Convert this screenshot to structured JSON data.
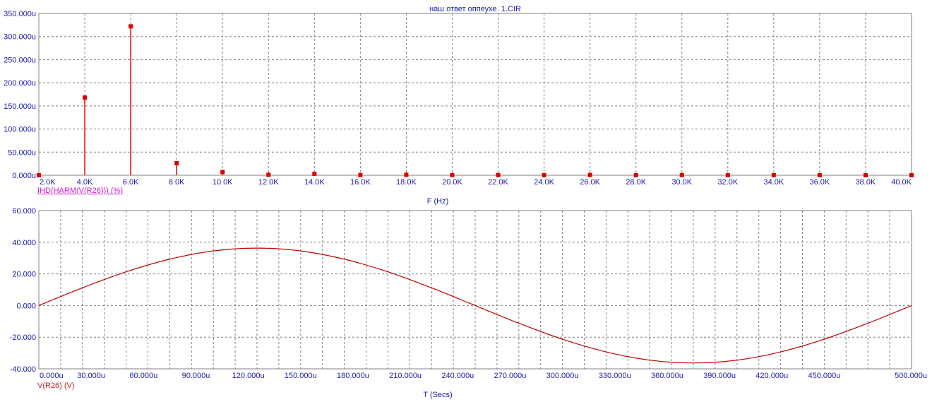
{
  "chart_data": [
    {
      "type": "bar",
      "title": "наш ответ оппеухе. 1.CIR",
      "xlabel": "F (Hz)",
      "ylabel": "IHD(HARM(V(R26))) (%)",
      "x_tick_labels": [
        "2.0K",
        "4.0K",
        "6.0K",
        "8.0K",
        "10.0K",
        "12.0K",
        "14.0K",
        "16.0K",
        "18.0K",
        "20.0K",
        "22.0K",
        "24.0K",
        "26.0K",
        "28.0K",
        "30.0K",
        "32.0K",
        "34.0K",
        "36.0K",
        "38.0K",
        "40.0K"
      ],
      "y_tick_labels": [
        "0.000u",
        "50.000u",
        "100.000u",
        "150.000u",
        "200.000u",
        "250.000u",
        "300.000u",
        "350.000u"
      ],
      "xlim": [
        2000,
        40000
      ],
      "ylim": [
        0,
        350
      ],
      "y_unit": "u",
      "x": [
        2000,
        4000,
        6000,
        8000,
        10000,
        12000,
        14000,
        16000,
        18000,
        20000,
        22000,
        24000,
        26000,
        28000,
        30000,
        32000,
        34000,
        36000,
        38000,
        40000
      ],
      "values": [
        0,
        168,
        322,
        26,
        7,
        1,
        3,
        0.5,
        1,
        0.3,
        0.5,
        0.2,
        0.6,
        0.1,
        0.5,
        0.1,
        0.1,
        0.1,
        0.1,
        0
      ],
      "grid": true,
      "color": "#dd0000"
    },
    {
      "type": "line",
      "xlabel": "T (Secs)",
      "ylabel": "V(R26) (V)",
      "x_tick_labels": [
        "0.000u",
        "30.000u",
        "60.000u",
        "90.000u",
        "120.000u",
        "150.000u",
        "180.000u",
        "210.000u",
        "240.000u",
        "270.000u",
        "300.000u",
        "330.000u",
        "360.000u",
        "390.000u",
        "420.000u",
        "450.000u",
        "500.000u"
      ],
      "y_tick_labels": [
        "-40.000",
        "-20.000",
        "0.000",
        "20.000",
        "40.000",
        "60.000"
      ],
      "xlim": [
        0,
        500
      ],
      "ylim": [
        -40,
        60
      ],
      "x": [
        0,
        25,
        50,
        75,
        100,
        125,
        150,
        175,
        200,
        225,
        250,
        275,
        300,
        325,
        350,
        375,
        400,
        425,
        450,
        475,
        500
      ],
      "values": [
        0,
        11.2,
        21.3,
        29.3,
        34.5,
        36.3,
        34.5,
        29.3,
        21.3,
        11.2,
        0,
        -11.2,
        -21.3,
        -29.3,
        -34.5,
        -36.3,
        -34.5,
        -29.3,
        -21.3,
        -11.2,
        0
      ],
      "grid": true,
      "color": "#bb0000"
    }
  ]
}
